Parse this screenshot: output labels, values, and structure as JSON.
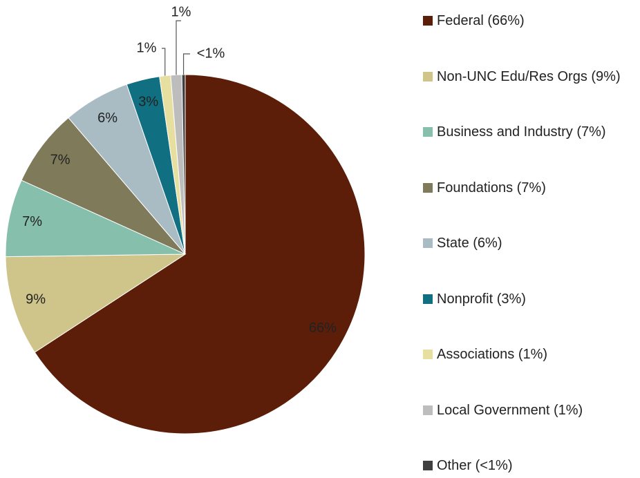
{
  "chart_data": {
    "type": "pie",
    "categories": [
      "Federal (66%)",
      "Non-UNC Edu/Res Orgs (9%)",
      "Business and Industry (7%)",
      "Foundations (7%)",
      "State (6%)",
      "Nonprofit (3%)",
      "Associations (1%)",
      "Local Government (1%)",
      "Other (<1%)"
    ],
    "values": [
      66,
      9,
      7,
      7,
      6,
      3,
      1,
      1,
      0.3
    ],
    "value_labels": [
      "66%",
      "9%",
      "7%",
      "7%",
      "6%",
      "3%",
      "1%",
      "1%",
      "<1%"
    ],
    "colors": [
      "#5c1e08",
      "#cfc48a",
      "#86c0ac",
      "#7f7a5a",
      "#a9bcc4",
      "#106f80",
      "#e6dfa0",
      "#bdbdbd",
      "#3f3f3f"
    ],
    "legend": "right"
  }
}
